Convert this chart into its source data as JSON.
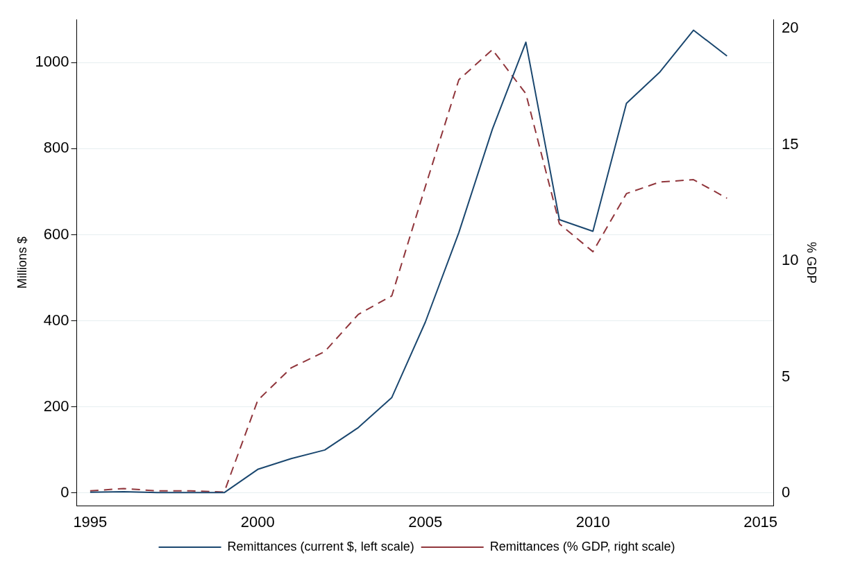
{
  "chart_data": {
    "type": "line",
    "ylabel": "Millions $",
    "y2label": "% GDP",
    "x": [
      1995,
      1996,
      1997,
      1998,
      1999,
      2000,
      2001,
      2002,
      2003,
      2004,
      2005,
      2006,
      2007,
      2008,
      2009,
      2010,
      2011,
      2012,
      2013,
      2014
    ],
    "series": [
      {
        "name": "Remittances (current $, left scale)",
        "color": "#1a476f",
        "line_style": "solid",
        "values": [
          2,
          3,
          1,
          1,
          1,
          55,
          80,
          100,
          152,
          222,
          397,
          605,
          845,
          1047,
          635,
          608,
          905,
          978,
          1075,
          1015
        ]
      },
      {
        "name": "Remittances (% GDP, right scale)",
        "color": "#90353b",
        "line_style": "dashed",
        "axis": "y2",
        "values": [
          0.1,
          0.2,
          0.1,
          0.1,
          0.05,
          4.0,
          5.4,
          6.1,
          7.7,
          8.5,
          13.2,
          17.8,
          19.1,
          17.2,
          11.6,
          10.4,
          12.9,
          13.4,
          13.5,
          12.7
        ]
      }
    ],
    "xlim": [
      1994.6,
      2015.4
    ],
    "xticks": [
      1995,
      2000,
      2005,
      2010,
      2015
    ],
    "ylim": [
      -30,
      1100
    ],
    "yticks": [
      0,
      200,
      400,
      600,
      800,
      1000
    ],
    "y2lim": [
      -0.55,
      20.4
    ],
    "y2ticks": [
      0,
      5,
      10,
      15,
      20
    ],
    "grid": "y",
    "legend": "bottom",
    "marker": "none"
  }
}
